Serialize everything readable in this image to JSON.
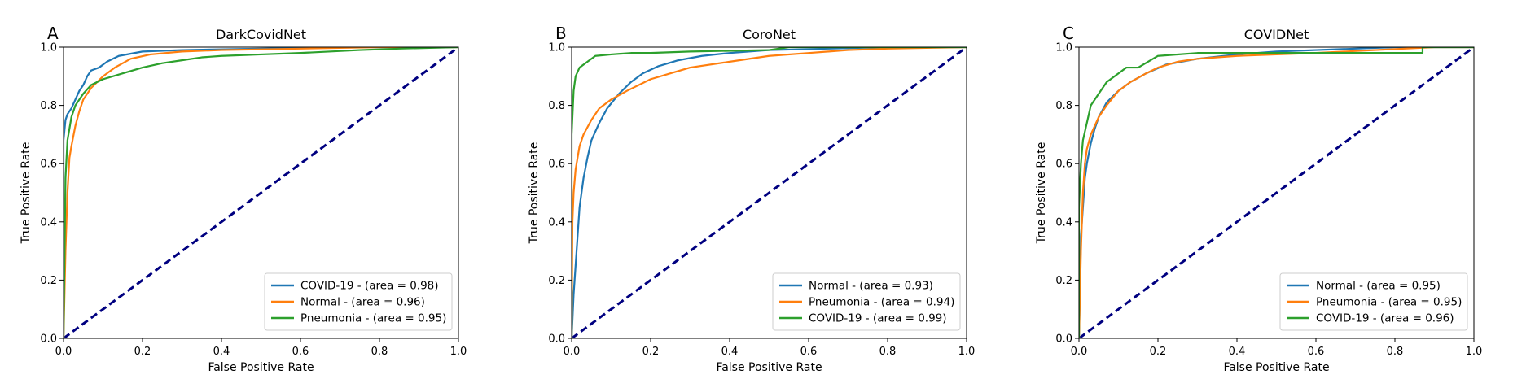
{
  "chart_data": [
    {
      "panel": "A",
      "type": "line",
      "title": "DarkCovidNet",
      "xlabel": "False Positive Rate",
      "ylabel": "True Positive Rate",
      "xlim": [
        0,
        1
      ],
      "ylim": [
        0,
        1
      ],
      "xticks": [
        "0.0",
        "0.2",
        "0.4",
        "0.6",
        "0.8",
        "1.0"
      ],
      "yticks": [
        "0.0",
        "0.2",
        "0.4",
        "0.6",
        "0.8",
        "1.0"
      ],
      "legend_position": "lower-right",
      "grid": false,
      "chance_line": {
        "x": [
          0,
          1
        ],
        "y": [
          0,
          1
        ],
        "color": "#000080",
        "style": "dashed"
      },
      "series": [
        {
          "name": "COVID-19 - (area = 0.98)",
          "color": "#1f77b4",
          "x": [
            0,
            0,
            0.005,
            0.01,
            0.02,
            0.03,
            0.04,
            0.05,
            0.06,
            0.07,
            0.09,
            0.11,
            0.14,
            0.2,
            0.3,
            0.5,
            0.7,
            1.0
          ],
          "y": [
            0,
            0.68,
            0.75,
            0.77,
            0.79,
            0.82,
            0.85,
            0.87,
            0.9,
            0.92,
            0.93,
            0.95,
            0.97,
            0.985,
            0.99,
            0.995,
            1.0,
            1.0
          ]
        },
        {
          "name": "Normal - (area = 0.96)",
          "color": "#ff7f0e",
          "x": [
            0,
            0.005,
            0.01,
            0.015,
            0.02,
            0.03,
            0.04,
            0.05,
            0.07,
            0.1,
            0.13,
            0.17,
            0.22,
            0.3,
            0.4,
            0.6,
            0.8,
            1.0
          ],
          "y": [
            0,
            0.3,
            0.5,
            0.62,
            0.66,
            0.73,
            0.78,
            0.82,
            0.86,
            0.9,
            0.93,
            0.96,
            0.975,
            0.985,
            0.99,
            0.995,
            1.0,
            1.0
          ]
        },
        {
          "name": "Pneumonia - (area = 0.95)",
          "color": "#2ca02c",
          "x": [
            0,
            0.005,
            0.01,
            0.02,
            0.03,
            0.05,
            0.07,
            0.1,
            0.15,
            0.2,
            0.25,
            0.3,
            0.35,
            0.4,
            0.5,
            0.6,
            0.75,
            0.85,
            1.0
          ],
          "y": [
            0,
            0.55,
            0.68,
            0.76,
            0.8,
            0.84,
            0.87,
            0.89,
            0.91,
            0.93,
            0.945,
            0.955,
            0.965,
            0.97,
            0.975,
            0.98,
            0.99,
            0.995,
            1.0
          ]
        }
      ]
    },
    {
      "panel": "B",
      "type": "line",
      "title": "CoroNet",
      "xlabel": "False Positive Rate",
      "ylabel": "True Positive Rate",
      "xlim": [
        0,
        1
      ],
      "ylim": [
        0,
        1
      ],
      "xticks": [
        "0.0",
        "0.2",
        "0.4",
        "0.6",
        "0.8",
        "1.0"
      ],
      "yticks": [
        "0.0",
        "0.2",
        "0.4",
        "0.6",
        "0.8",
        "1.0"
      ],
      "legend_position": "lower-right",
      "grid": false,
      "chance_line": {
        "x": [
          0,
          1
        ],
        "y": [
          0,
          1
        ],
        "color": "#000080",
        "style": "dashed"
      },
      "series": [
        {
          "name": "Normal - (area = 0.93)",
          "color": "#1f77b4",
          "x": [
            0,
            0.005,
            0.01,
            0.015,
            0.02,
            0.03,
            0.04,
            0.05,
            0.07,
            0.09,
            0.12,
            0.15,
            0.18,
            0.22,
            0.27,
            0.33,
            0.4,
            0.5,
            0.65,
            0.8,
            1.0
          ],
          "y": [
            0,
            0.15,
            0.25,
            0.35,
            0.45,
            0.55,
            0.62,
            0.68,
            0.74,
            0.79,
            0.84,
            0.88,
            0.91,
            0.935,
            0.955,
            0.97,
            0.98,
            0.99,
            0.995,
            1.0,
            1.0
          ]
        },
        {
          "name": "Pneumonia - (area = 0.94)",
          "color": "#ff7f0e",
          "x": [
            0,
            0.002,
            0.005,
            0.01,
            0.015,
            0.02,
            0.03,
            0.05,
            0.07,
            0.1,
            0.14,
            0.2,
            0.25,
            0.3,
            0.4,
            0.5,
            0.6,
            0.7,
            0.8,
            1.0
          ],
          "y": [
            0,
            0.4,
            0.5,
            0.58,
            0.62,
            0.66,
            0.7,
            0.75,
            0.79,
            0.82,
            0.85,
            0.89,
            0.91,
            0.93,
            0.95,
            0.97,
            0.98,
            0.99,
            0.995,
            1.0
          ]
        },
        {
          "name": "COVID-19 - (area = 0.99)",
          "color": "#2ca02c",
          "x": [
            0,
            0,
            0.005,
            0.01,
            0.02,
            0.04,
            0.06,
            0.1,
            0.15,
            0.2,
            0.3,
            0.5,
            0.55,
            0.7,
            1.0
          ],
          "y": [
            0,
            0.7,
            0.85,
            0.9,
            0.93,
            0.95,
            0.97,
            0.975,
            0.98,
            0.98,
            0.985,
            0.99,
            1.0,
            1.0,
            1.0
          ]
        }
      ]
    },
    {
      "panel": "C",
      "type": "line",
      "title": "COVIDNet",
      "xlabel": "False Positive Rate",
      "ylabel": "True Positive Rate",
      "xlim": [
        0,
        1
      ],
      "ylim": [
        0,
        1
      ],
      "xticks": [
        "0.0",
        "0.2",
        "0.4",
        "0.6",
        "0.8",
        "1.0"
      ],
      "yticks": [
        "0.0",
        "0.2",
        "0.4",
        "0.6",
        "0.8",
        "1.0"
      ],
      "legend_position": "lower-right",
      "grid": false,
      "chance_line": {
        "x": [
          0,
          1
        ],
        "y": [
          0,
          1
        ],
        "color": "#000080",
        "style": "dashed"
      },
      "series": [
        {
          "name": "Normal - (area = 0.95)",
          "color": "#1f77b4",
          "x": [
            0,
            0.005,
            0.01,
            0.015,
            0.02,
            0.03,
            0.04,
            0.05,
            0.07,
            0.1,
            0.13,
            0.17,
            0.22,
            0.3,
            0.4,
            0.5,
            0.6,
            0.8,
            1.0
          ],
          "y": [
            0,
            0.35,
            0.45,
            0.55,
            0.6,
            0.67,
            0.72,
            0.76,
            0.81,
            0.85,
            0.88,
            0.91,
            0.94,
            0.96,
            0.975,
            0.985,
            0.99,
            1.0,
            1.0
          ]
        },
        {
          "name": "Pneumonia - (area = 0.95)",
          "color": "#ff7f0e",
          "x": [
            0,
            0.005,
            0.01,
            0.015,
            0.02,
            0.03,
            0.05,
            0.07,
            0.1,
            0.13,
            0.17,
            0.2,
            0.25,
            0.3,
            0.35,
            0.4,
            0.5,
            0.6,
            0.75,
            0.9,
            1.0
          ],
          "y": [
            0,
            0.3,
            0.5,
            0.6,
            0.65,
            0.7,
            0.76,
            0.8,
            0.85,
            0.88,
            0.91,
            0.93,
            0.95,
            0.96,
            0.965,
            0.97,
            0.975,
            0.98,
            0.99,
            1.0,
            1.0
          ]
        },
        {
          "name": "COVID-19 - (area = 0.96)",
          "color": "#2ca02c",
          "x": [
            0,
            0,
            0.005,
            0.01,
            0.02,
            0.03,
            0.05,
            0.07,
            0.1,
            0.12,
            0.15,
            0.2,
            0.3,
            0.5,
            0.87,
            0.87,
            1.0
          ],
          "y": [
            0,
            0.45,
            0.6,
            0.68,
            0.74,
            0.8,
            0.84,
            0.88,
            0.91,
            0.93,
            0.93,
            0.97,
            0.98,
            0.98,
            0.98,
            1.0,
            1.0
          ]
        }
      ]
    }
  ]
}
